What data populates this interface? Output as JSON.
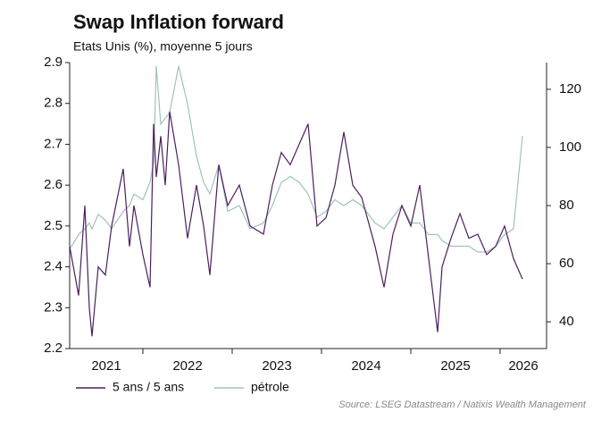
{
  "chart_data": {
    "type": "line",
    "title": "Swap Inflation forward",
    "subtitle": "Etats Unis (%), moyenne 5 jours",
    "source": "Source: LSEG Datastream / Natixis Wealth Management",
    "x": [
      2021.18,
      2021.28,
      2021.35,
      2021.4,
      2021.43,
      2021.5,
      2021.58,
      2021.65,
      2021.78,
      2021.85,
      2021.9,
      2022.0,
      2022.08,
      2022.12,
      2022.15,
      2022.2,
      2022.25,
      2022.3,
      2022.4,
      2022.5,
      2022.6,
      2022.68,
      2022.75,
      2022.85,
      2022.95,
      2023.08,
      2023.2,
      2023.35,
      2023.45,
      2023.55,
      2023.65,
      2023.75,
      2023.85,
      2023.95,
      2024.05,
      2024.15,
      2024.25,
      2024.35,
      2024.45,
      2024.6,
      2024.7,
      2024.8,
      2024.9,
      2025.0,
      2025.1,
      2025.2,
      2025.3,
      2025.35,
      2025.45,
      2025.55,
      2025.65,
      2025.75,
      2025.85,
      2025.95,
      2026.05,
      2026.15,
      2026.25
    ],
    "xlim": [
      2021.18,
      2026.52
    ],
    "xticks": [
      2021,
      2022,
      2023,
      2024,
      2025,
      2026
    ],
    "ylim": [
      2.2,
      2.9
    ],
    "yticks": [
      2.2,
      2.3,
      2.4,
      2.5,
      2.6,
      2.7,
      2.8,
      2.9
    ],
    "y2lim": [
      30.8,
      129.2
    ],
    "y2ticks": [
      40,
      60,
      80,
      100,
      120
    ],
    "legend": "bottom-left",
    "series": [
      {
        "name": "5 ans / 5 ans",
        "color": "#4b1f5e",
        "values": [
          2.45,
          2.33,
          2.55,
          2.3,
          2.23,
          2.4,
          2.38,
          2.5,
          2.64,
          2.45,
          2.55,
          2.43,
          2.35,
          2.75,
          2.62,
          2.72,
          2.6,
          2.78,
          2.65,
          2.47,
          2.6,
          2.5,
          2.38,
          2.65,
          2.55,
          2.6,
          2.5,
          2.48,
          2.6,
          2.68,
          2.65,
          2.7,
          2.75,
          2.5,
          2.52,
          2.6,
          2.73,
          2.6,
          2.57,
          2.45,
          2.35,
          2.48,
          2.55,
          2.5,
          2.6,
          2.42,
          2.24,
          2.4,
          2.47,
          2.53,
          2.47,
          2.48,
          2.43,
          2.45,
          2.5,
          2.42,
          2.37
        ]
      },
      {
        "name": "pétrole",
        "color": "#9fc3b8",
        "axis": "y2",
        "values": [
          65,
          70,
          72,
          74,
          72,
          77,
          75,
          72,
          78,
          80,
          84,
          82,
          88,
          95,
          128,
          108,
          110,
          112,
          128,
          115,
          97,
          88,
          84,
          94,
          78,
          80,
          72,
          74,
          80,
          88,
          90,
          88,
          84,
          76,
          78,
          82,
          80,
          82,
          80,
          74,
          72,
          76,
          80,
          74,
          74,
          70,
          70,
          68,
          66,
          66,
          66,
          64,
          64,
          66,
          70,
          72,
          104
        ]
      }
    ]
  }
}
